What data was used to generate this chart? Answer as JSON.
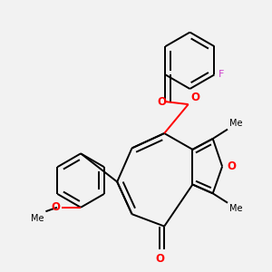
{
  "background_color": "#f2f2f2",
  "line_color": "#000000",
  "oxygen_color": "#ff0000",
  "fluorine_color": "#cc44cc",
  "bond_width": 1.4,
  "figsize": [
    3.0,
    3.0
  ],
  "dpi": 100,
  "xlim": [
    0.0,
    10.0
  ],
  "ylim": [
    0.0,
    10.0
  ]
}
